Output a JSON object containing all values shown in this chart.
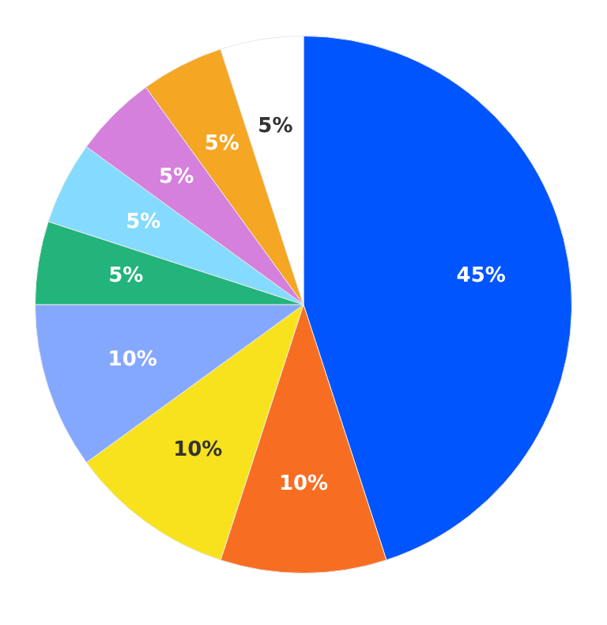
{
  "chart_data": {
    "type": "pie",
    "categories": [
      null,
      null,
      null,
      null,
      null,
      null,
      null,
      null,
      null
    ],
    "values": [
      45,
      10,
      10,
      10,
      5,
      5,
      5,
      5,
      5
    ],
    "colors": [
      "#0055ff",
      "#f76e22",
      "#f8e21e",
      "#85a8ff",
      "#22b47a",
      "#84dbff",
      "#d580dc",
      "#f5a623",
      "#ffffff"
    ],
    "value_labels": [
      "45%",
      "10%",
      "10%",
      "10%",
      "5%",
      "5%",
      "5%",
      "5%",
      "5%"
    ],
    "legend": false
  }
}
